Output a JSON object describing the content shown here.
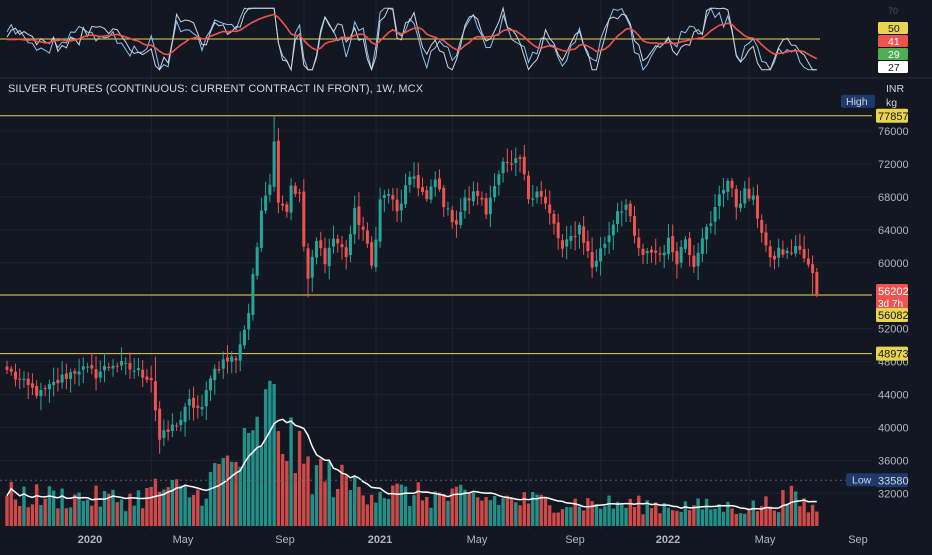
{
  "header": {
    "symbol_title": "SILVER FUTURES (CONTINUOUS: CURRENT CONTRACT IN FRONT), 1W, MCX",
    "currency": "INR",
    "unit": "kg"
  },
  "colors": {
    "background": "#131722",
    "grid": "#1f2230",
    "up": "#26a69a",
    "down": "#ef5350",
    "level_line": "#e8d44d",
    "volume_ma": "#ffffff",
    "rsi_fast": "#d1d4dc",
    "rsi_slow": "#ef5350",
    "rsi_third": "#89c4f4",
    "axis_text": "#b2b5be",
    "tag_navy": "#1e3a6a"
  },
  "chart_data": {
    "type": "candlestick",
    "timeframe": "1W",
    "exchange": "MCX",
    "y_axis": {
      "ticks": [
        32000,
        36000,
        40000,
        44000,
        48000,
        52000,
        56000,
        60000,
        64000,
        68000,
        72000,
        76000
      ],
      "range": [
        29000,
        78800
      ]
    },
    "x_axis": {
      "labels": [
        "2020",
        "May",
        "Sep",
        "2021",
        "May",
        "Sep",
        "2022",
        "May",
        "Sep"
      ],
      "bold_labels": [
        "2020",
        "2021",
        "2022"
      ]
    },
    "horizontal_levels": [
      77857,
      56082,
      48973
    ],
    "price_tags": [
      {
        "kind": "high",
        "label": "High",
        "value": "77857"
      },
      {
        "kind": "last",
        "value": "56202",
        "countdown": "3d 7h"
      },
      {
        "kind": "level",
        "value": "56082"
      },
      {
        "kind": "level",
        "value": "48973"
      },
      {
        "kind": "low",
        "label": "Low",
        "value": "33580"
      }
    ],
    "indicator_values": [
      "50",
      "41",
      "29",
      "27"
    ],
    "indicator_reference_level": 50,
    "anchors": [
      {
        "i": 0,
        "c": 47000
      },
      {
        "i": 4,
        "c": 45200
      },
      {
        "i": 8,
        "c": 44000
      },
      {
        "i": 13,
        "c": 46000
      },
      {
        "i": 17,
        "c": 47200
      },
      {
        "i": 21,
        "c": 46500
      },
      {
        "i": 25,
        "c": 47800
      },
      {
        "i": 30,
        "c": 47000
      },
      {
        "i": 34,
        "c": 46000
      },
      {
        "i": 36,
        "c": 38500
      },
      {
        "i": 38,
        "c": 39500
      },
      {
        "i": 41,
        "c": 41000
      },
      {
        "i": 43,
        "c": 43000
      },
      {
        "i": 46,
        "c": 42000
      },
      {
        "i": 48,
        "c": 46500
      },
      {
        "i": 51,
        "c": 48000
      },
      {
        "i": 54,
        "c": 48500
      },
      {
        "i": 56,
        "c": 52000
      },
      {
        "i": 57,
        "c": 54000
      },
      {
        "i": 58,
        "c": 58000
      },
      {
        "i": 59,
        "c": 62000
      },
      {
        "i": 60,
        "c": 67000
      },
      {
        "i": 62,
        "c": 70000
      },
      {
        "i": 63,
        "c": 74500
      },
      {
        "i": 64,
        "c": 68000
      },
      {
        "i": 66,
        "c": 66500
      },
      {
        "i": 67,
        "c": 69500
      },
      {
        "i": 69,
        "c": 68000
      },
      {
        "i": 70,
        "c": 62000
      },
      {
        "i": 71,
        "c": 58000
      },
      {
        "i": 73,
        "c": 62500
      },
      {
        "i": 75,
        "c": 60500
      },
      {
        "i": 77,
        "c": 63000
      },
      {
        "i": 80,
        "c": 61000
      },
      {
        "i": 82,
        "c": 66000
      },
      {
        "i": 84,
        "c": 64000
      },
      {
        "i": 86,
        "c": 59500
      },
      {
        "i": 88,
        "c": 67500
      },
      {
        "i": 90,
        "c": 68500
      },
      {
        "i": 92,
        "c": 66000
      },
      {
        "i": 94,
        "c": 69000
      },
      {
        "i": 96,
        "c": 70500
      },
      {
        "i": 99,
        "c": 67500
      },
      {
        "i": 101,
        "c": 70000
      },
      {
        "i": 104,
        "c": 66000
      },
      {
        "i": 106,
        "c": 65000
      },
      {
        "i": 108,
        "c": 67500
      },
      {
        "i": 111,
        "c": 68500
      },
      {
        "i": 113,
        "c": 66000
      },
      {
        "i": 115,
        "c": 70000
      },
      {
        "i": 117,
        "c": 72000
      },
      {
        "i": 119,
        "c": 71500
      },
      {
        "i": 121,
        "c": 72500
      },
      {
        "i": 123,
        "c": 68000
      },
      {
        "i": 125,
        "c": 69000
      },
      {
        "i": 127,
        "c": 67000
      },
      {
        "i": 129,
        "c": 64500
      },
      {
        "i": 131,
        "c": 61500
      },
      {
        "i": 133,
        "c": 63000
      },
      {
        "i": 135,
        "c": 64500
      },
      {
        "i": 138,
        "c": 59500
      },
      {
        "i": 140,
        "c": 61500
      },
      {
        "i": 142,
        "c": 63500
      },
      {
        "i": 144,
        "c": 66500
      },
      {
        "i": 146,
        "c": 67000
      },
      {
        "i": 148,
        "c": 63000
      },
      {
        "i": 150,
        "c": 60500
      },
      {
        "i": 152,
        "c": 61500
      },
      {
        "i": 154,
        "c": 61000
      },
      {
        "i": 156,
        "c": 62500
      },
      {
        "i": 158,
        "c": 60500
      },
      {
        "i": 160,
        "c": 63000
      },
      {
        "i": 162,
        "c": 60000
      },
      {
        "i": 164,
        "c": 63500
      },
      {
        "i": 166,
        "c": 64500
      },
      {
        "i": 168,
        "c": 68500
      },
      {
        "i": 170,
        "c": 70000
      },
      {
        "i": 172,
        "c": 67000
      },
      {
        "i": 174,
        "c": 68500
      },
      {
        "i": 176,
        "c": 67500
      },
      {
        "i": 178,
        "c": 64000
      },
      {
        "i": 180,
        "c": 60000
      },
      {
        "i": 182,
        "c": 61500
      },
      {
        "i": 184,
        "c": 61000
      },
      {
        "i": 186,
        "c": 62000
      },
      {
        "i": 188,
        "c": 60500
      },
      {
        "i": 190,
        "c": 58500
      },
      {
        "i": 191,
        "c": 56202
      }
    ],
    "volume_profile": [
      {
        "i": 0,
        "v": 0.22
      },
      {
        "i": 30,
        "v": 0.19
      },
      {
        "i": 36,
        "v": 0.27
      },
      {
        "i": 45,
        "v": 0.22
      },
      {
        "i": 50,
        "v": 0.4
      },
      {
        "i": 58,
        "v": 0.55
      },
      {
        "i": 62,
        "v": 0.85
      },
      {
        "i": 64,
        "v": 0.72
      },
      {
        "i": 70,
        "v": 0.42
      },
      {
        "i": 80,
        "v": 0.3
      },
      {
        "i": 95,
        "v": 0.22
      },
      {
        "i": 110,
        "v": 0.2
      },
      {
        "i": 130,
        "v": 0.17
      },
      {
        "i": 150,
        "v": 0.15
      },
      {
        "i": 175,
        "v": 0.13
      },
      {
        "i": 185,
        "v": 0.2
      },
      {
        "i": 191,
        "v": 0.11
      }
    ]
  }
}
